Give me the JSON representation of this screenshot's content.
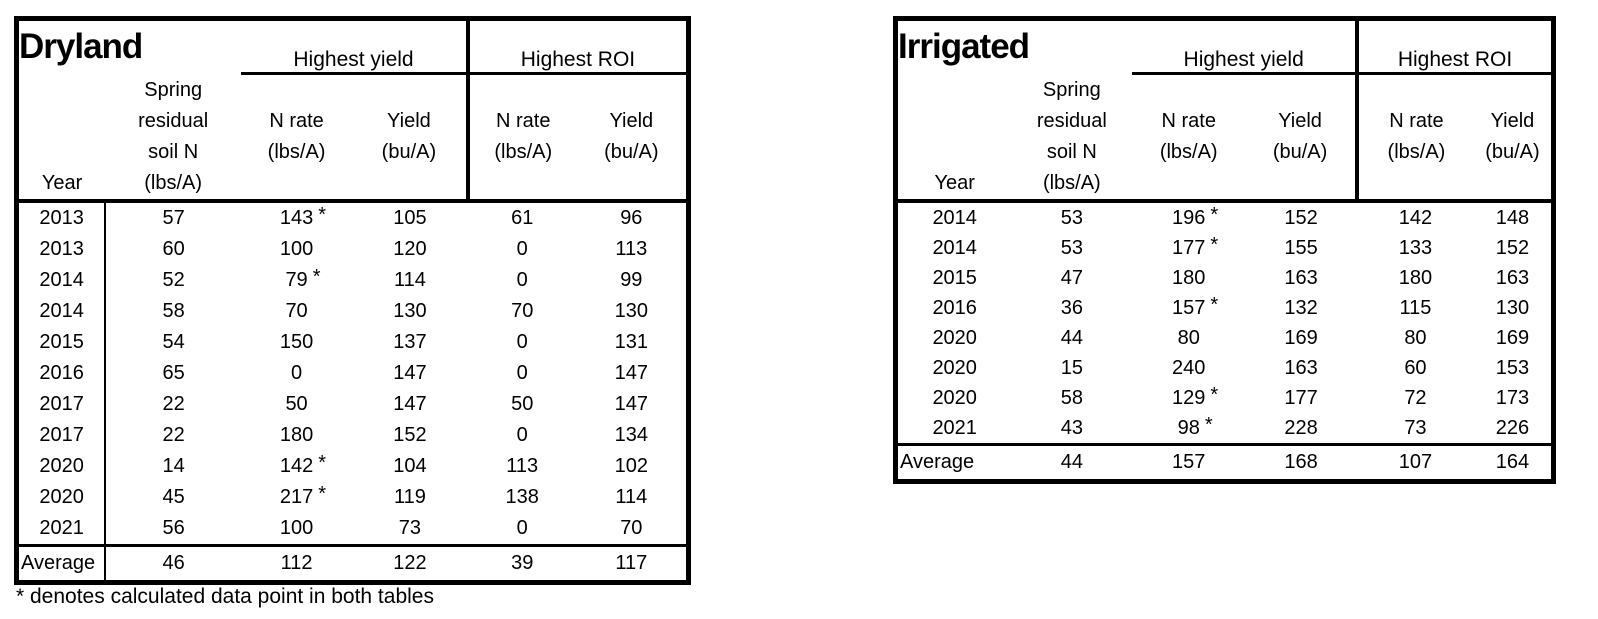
{
  "footnote": "* denotes calculated data point in both tables",
  "asterisk_symbol": "*",
  "colors": {
    "border": "#000000",
    "background": "#ffffff",
    "text": "#000000"
  },
  "tables": [
    {
      "title": "Dryland",
      "section_headers": {
        "highest_yield": "Highest yield",
        "highest_roi": "Highest ROI"
      },
      "column_headers": {
        "year": "Year",
        "spring_lines": [
          "Spring",
          "residual",
          "soil N",
          "(lbs/A)"
        ],
        "n_rate_lines": [
          "N rate",
          "(lbs/A)"
        ],
        "yield_lines": [
          "Yield",
          "(bu/A)"
        ]
      },
      "rows": [
        {
          "year": "2013",
          "spring_n": "57",
          "hy_n_rate": "143",
          "hy_n_rate_suffix": "*",
          "hy_yield": "105",
          "roi_n_rate": "61",
          "roi_yield": "96"
        },
        {
          "year": "2013",
          "spring_n": "60",
          "hy_n_rate": "100",
          "hy_yield": "120",
          "roi_n_rate": "0",
          "roi_yield": "113"
        },
        {
          "year": "2014",
          "spring_n": "52",
          "hy_n_rate": "79",
          "hy_n_rate_suffix": "*",
          "hy_yield": "114",
          "roi_n_rate": "0",
          "roi_yield": "99"
        },
        {
          "year": "2014",
          "spring_n": "58",
          "hy_n_rate": "70",
          "hy_yield": "130",
          "roi_n_rate": "70",
          "roi_yield": "130"
        },
        {
          "year": "2015",
          "spring_n": "54",
          "hy_n_rate": "150",
          "hy_yield": "137",
          "roi_n_rate": "0",
          "roi_yield": "131"
        },
        {
          "year": "2016",
          "spring_n": "65",
          "hy_n_rate": "0",
          "hy_yield": "147",
          "roi_n_rate": "0",
          "roi_yield": "147"
        },
        {
          "year": "2017",
          "spring_n": "22",
          "hy_n_rate": "50",
          "hy_yield": "147",
          "roi_n_rate": "50",
          "roi_yield": "147"
        },
        {
          "year": "2017",
          "spring_n": "22",
          "hy_n_rate": "180",
          "hy_yield": "152",
          "roi_n_rate": "0",
          "roi_yield": "134"
        },
        {
          "year": "2020",
          "spring_n": "14",
          "hy_n_rate": "142",
          "hy_n_rate_suffix": "*",
          "hy_yield": "104",
          "roi_n_rate": "113",
          "roi_yield": "102"
        },
        {
          "year": "2020",
          "spring_n": "45",
          "hy_n_rate": "217",
          "hy_n_rate_suffix": "*",
          "hy_yield": "119",
          "roi_n_rate": "138",
          "roi_yield": "114"
        },
        {
          "year": "2021",
          "spring_n": "56",
          "hy_n_rate": "100",
          "hy_yield": "73",
          "roi_n_rate": "0",
          "roi_yield": "70"
        }
      ],
      "average": {
        "label": "Average",
        "spring_n": "46",
        "hy_n_rate": "112",
        "hy_yield": "122",
        "roi_n_rate": "39",
        "roi_yield": "117"
      }
    },
    {
      "title": "Irrigated",
      "section_headers": {
        "highest_yield": "Highest yield",
        "highest_roi": "Highest ROI"
      },
      "column_headers": {
        "year": "Year",
        "spring_lines": [
          "Spring",
          "residual",
          "soil N",
          "(lbs/A)"
        ],
        "n_rate_lines": [
          "N rate",
          "(lbs/A)"
        ],
        "yield_lines": [
          "Yield",
          "(bu/A)"
        ]
      },
      "rows": [
        {
          "year": "2014",
          "spring_n": "53",
          "hy_n_rate": "196",
          "hy_n_rate_suffix": "*",
          "hy_yield": "152",
          "roi_n_rate": "142",
          "roi_yield": "148"
        },
        {
          "year": "2014",
          "spring_n": "53",
          "hy_n_rate": "177",
          "hy_n_rate_suffix": "*",
          "hy_yield": "155",
          "roi_n_rate": "133",
          "roi_yield": "152"
        },
        {
          "year": "2015",
          "spring_n": "47",
          "hy_n_rate": "180",
          "hy_yield": "163",
          "roi_n_rate": "180",
          "roi_yield": "163"
        },
        {
          "year": "2016",
          "spring_n": "36",
          "hy_n_rate": "157",
          "hy_n_rate_suffix": "*",
          "hy_yield": "132",
          "roi_n_rate": "115",
          "roi_yield": "130"
        },
        {
          "year": "2020",
          "spring_n": "44",
          "hy_n_rate": "80",
          "hy_yield": "169",
          "roi_n_rate": "80",
          "roi_yield": "169"
        },
        {
          "year": "2020",
          "spring_n": "15",
          "hy_n_rate": "240",
          "hy_yield": "163",
          "roi_n_rate": "60",
          "roi_yield": "153"
        },
        {
          "year": "2020",
          "spring_n": "58",
          "hy_n_rate": "129",
          "hy_n_rate_suffix": "*",
          "hy_yield": "177",
          "roi_n_rate": "72",
          "roi_yield": "173"
        },
        {
          "year": "2021",
          "spring_n": "43",
          "hy_n_rate": "98",
          "hy_n_rate_suffix": "*",
          "hy_yield": "228",
          "roi_n_rate": "73",
          "roi_yield": "226"
        }
      ],
      "average": {
        "label": "Average",
        "spring_n": "44",
        "hy_n_rate": "157",
        "hy_yield": "168",
        "roi_n_rate": "107",
        "roi_yield": "164"
      }
    }
  ]
}
